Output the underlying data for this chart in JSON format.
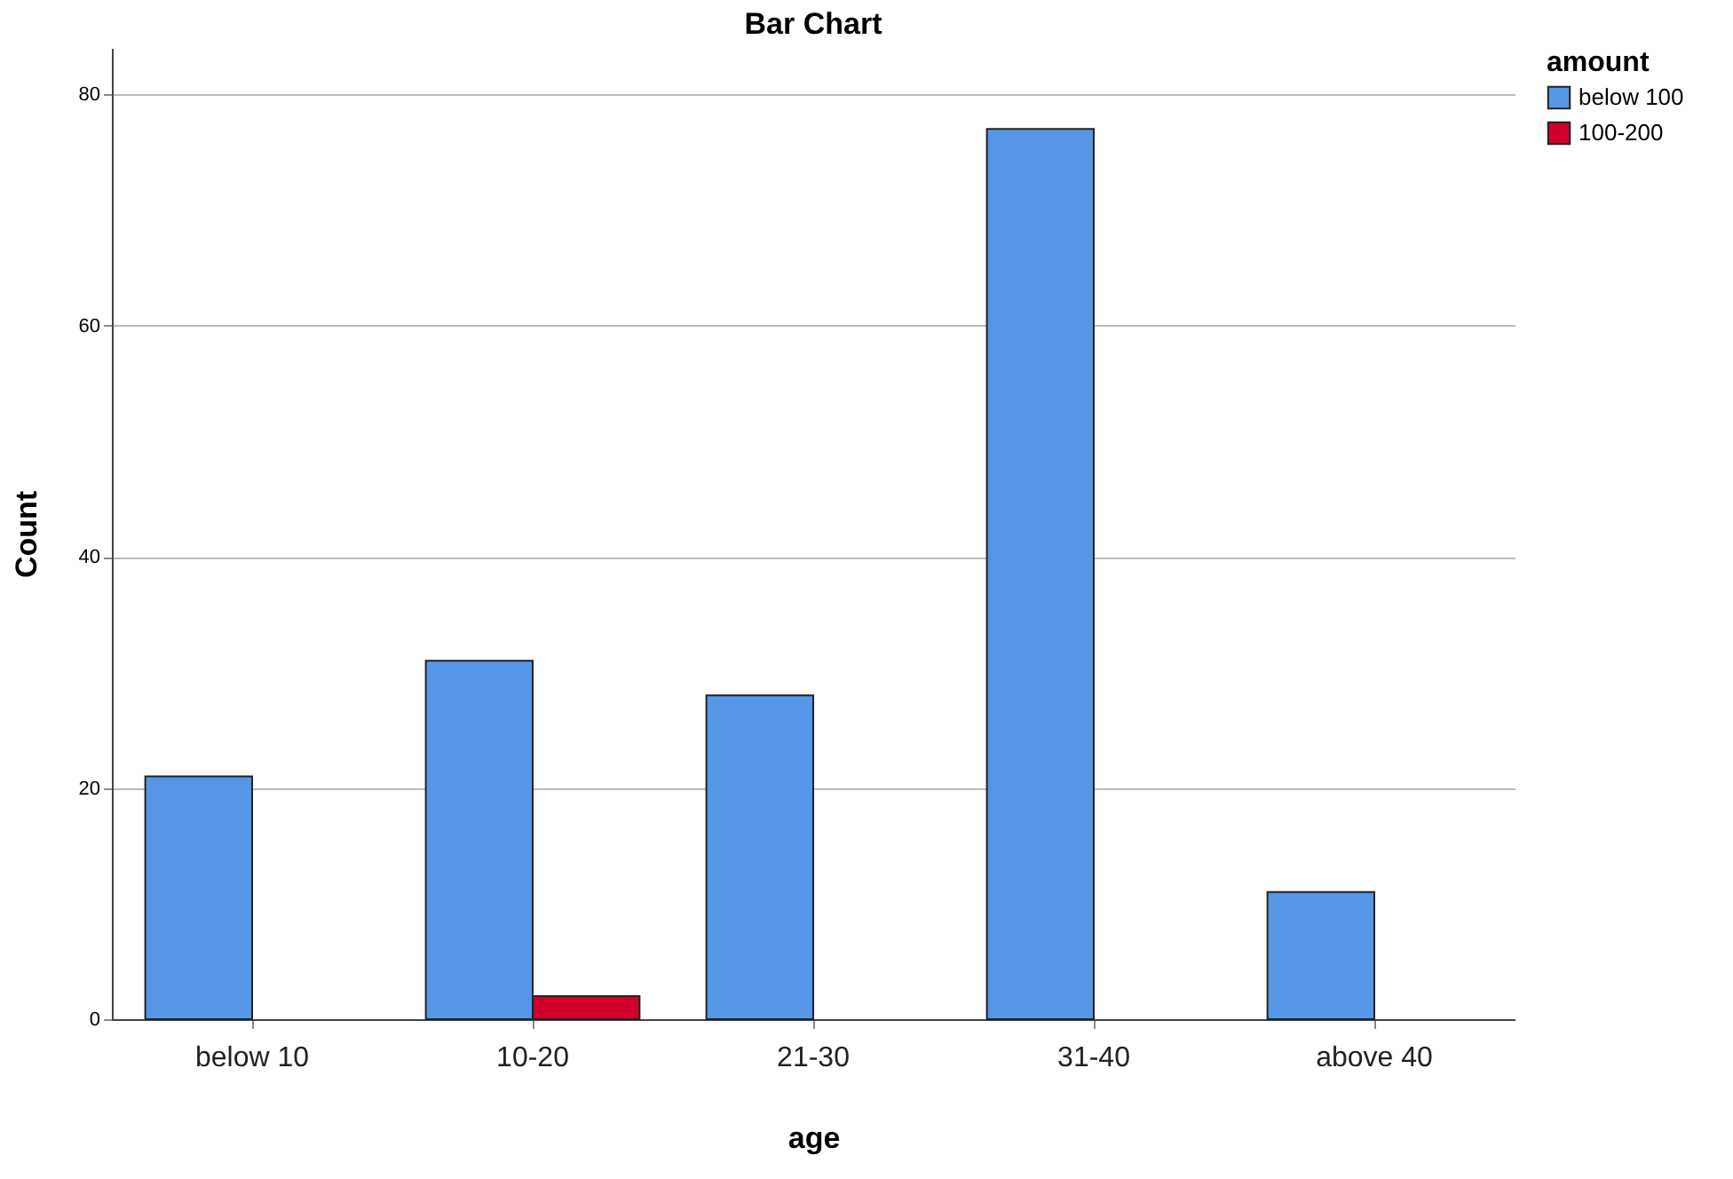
{
  "chart_data": {
    "type": "bar",
    "title": "Bar Chart",
    "xlabel": "age",
    "ylabel": "Count",
    "legend_title": "amount",
    "categories": [
      "below 10",
      "10-20",
      "21-30",
      "31-40",
      "above 40"
    ],
    "series": [
      {
        "name": "below 100",
        "color": "#5596e6",
        "values": [
          21,
          31,
          28,
          77,
          11
        ]
      },
      {
        "name": "100-200",
        "color": "#d1002a",
        "values": [
          null,
          2,
          null,
          null,
          null
        ]
      }
    ],
    "ylim": [
      0,
      84
    ],
    "yticks": [
      0,
      20,
      40,
      60,
      80
    ],
    "grid": "y",
    "legend": "top right"
  }
}
